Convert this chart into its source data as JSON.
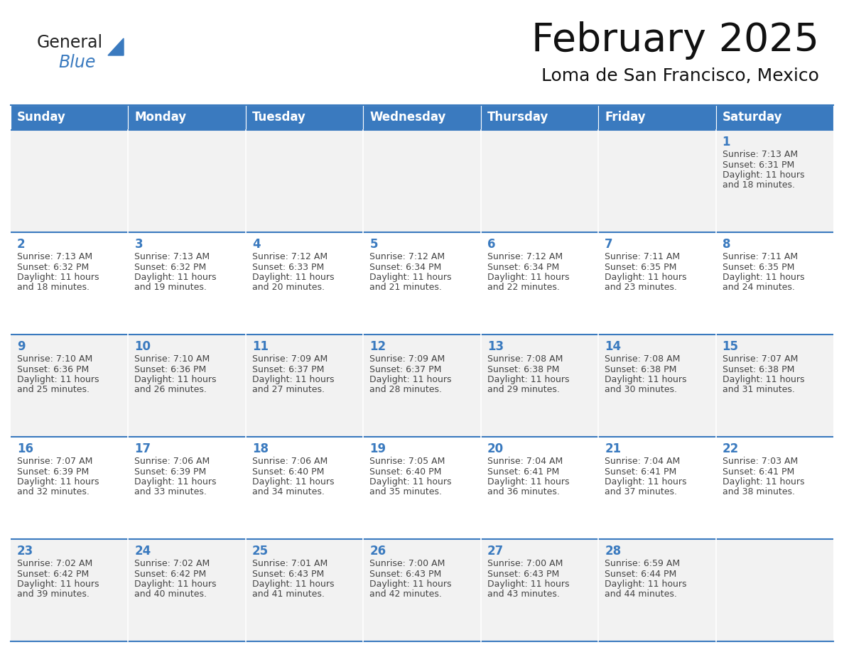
{
  "title": "February 2025",
  "subtitle": "Loma de San Francisco, Mexico",
  "header_color": "#3a7abf",
  "header_text_color": "#ffffff",
  "cell_bg_even": "#f2f2f2",
  "cell_bg_odd": "#ffffff",
  "text_color": "#444444",
  "day_number_color": "#3a7abf",
  "border_color": "#3a7abf",
  "days_of_week": [
    "Sunday",
    "Monday",
    "Tuesday",
    "Wednesday",
    "Thursday",
    "Friday",
    "Saturday"
  ],
  "calendar_data": [
    [
      null,
      null,
      null,
      null,
      null,
      null,
      {
        "day": "1",
        "sunrise": "7:13 AM",
        "sunset": "6:31 PM",
        "daylight": "11 hours and 18 minutes."
      }
    ],
    [
      {
        "day": "2",
        "sunrise": "7:13 AM",
        "sunset": "6:32 PM",
        "daylight": "11 hours and 18 minutes."
      },
      {
        "day": "3",
        "sunrise": "7:13 AM",
        "sunset": "6:32 PM",
        "daylight": "11 hours and 19 minutes."
      },
      {
        "day": "4",
        "sunrise": "7:12 AM",
        "sunset": "6:33 PM",
        "daylight": "11 hours and 20 minutes."
      },
      {
        "day": "5",
        "sunrise": "7:12 AM",
        "sunset": "6:34 PM",
        "daylight": "11 hours and 21 minutes."
      },
      {
        "day": "6",
        "sunrise": "7:12 AM",
        "sunset": "6:34 PM",
        "daylight": "11 hours and 22 minutes."
      },
      {
        "day": "7",
        "sunrise": "7:11 AM",
        "sunset": "6:35 PM",
        "daylight": "11 hours and 23 minutes."
      },
      {
        "day": "8",
        "sunrise": "7:11 AM",
        "sunset": "6:35 PM",
        "daylight": "11 hours and 24 minutes."
      }
    ],
    [
      {
        "day": "9",
        "sunrise": "7:10 AM",
        "sunset": "6:36 PM",
        "daylight": "11 hours and 25 minutes."
      },
      {
        "day": "10",
        "sunrise": "7:10 AM",
        "sunset": "6:36 PM",
        "daylight": "11 hours and 26 minutes."
      },
      {
        "day": "11",
        "sunrise": "7:09 AM",
        "sunset": "6:37 PM",
        "daylight": "11 hours and 27 minutes."
      },
      {
        "day": "12",
        "sunrise": "7:09 AM",
        "sunset": "6:37 PM",
        "daylight": "11 hours and 28 minutes."
      },
      {
        "day": "13",
        "sunrise": "7:08 AM",
        "sunset": "6:38 PM",
        "daylight": "11 hours and 29 minutes."
      },
      {
        "day": "14",
        "sunrise": "7:08 AM",
        "sunset": "6:38 PM",
        "daylight": "11 hours and 30 minutes."
      },
      {
        "day": "15",
        "sunrise": "7:07 AM",
        "sunset": "6:38 PM",
        "daylight": "11 hours and 31 minutes."
      }
    ],
    [
      {
        "day": "16",
        "sunrise": "7:07 AM",
        "sunset": "6:39 PM",
        "daylight": "11 hours and 32 minutes."
      },
      {
        "day": "17",
        "sunrise": "7:06 AM",
        "sunset": "6:39 PM",
        "daylight": "11 hours and 33 minutes."
      },
      {
        "day": "18",
        "sunrise": "7:06 AM",
        "sunset": "6:40 PM",
        "daylight": "11 hours and 34 minutes."
      },
      {
        "day": "19",
        "sunrise": "7:05 AM",
        "sunset": "6:40 PM",
        "daylight": "11 hours and 35 minutes."
      },
      {
        "day": "20",
        "sunrise": "7:04 AM",
        "sunset": "6:41 PM",
        "daylight": "11 hours and 36 minutes."
      },
      {
        "day": "21",
        "sunrise": "7:04 AM",
        "sunset": "6:41 PM",
        "daylight": "11 hours and 37 minutes."
      },
      {
        "day": "22",
        "sunrise": "7:03 AM",
        "sunset": "6:41 PM",
        "daylight": "11 hours and 38 minutes."
      }
    ],
    [
      {
        "day": "23",
        "sunrise": "7:02 AM",
        "sunset": "6:42 PM",
        "daylight": "11 hours and 39 minutes."
      },
      {
        "day": "24",
        "sunrise": "7:02 AM",
        "sunset": "6:42 PM",
        "daylight": "11 hours and 40 minutes."
      },
      {
        "day": "25",
        "sunrise": "7:01 AM",
        "sunset": "6:43 PM",
        "daylight": "11 hours and 41 minutes."
      },
      {
        "day": "26",
        "sunrise": "7:00 AM",
        "sunset": "6:43 PM",
        "daylight": "11 hours and 42 minutes."
      },
      {
        "day": "27",
        "sunrise": "7:00 AM",
        "sunset": "6:43 PM",
        "daylight": "11 hours and 43 minutes."
      },
      {
        "day": "28",
        "sunrise": "6:59 AM",
        "sunset": "6:44 PM",
        "daylight": "11 hours and 44 minutes."
      },
      null
    ]
  ],
  "figsize": [
    11.88,
    9.18
  ],
  "dpi": 100,
  "title_fontsize": 40,
  "subtitle_fontsize": 18,
  "dow_fontsize": 12,
  "day_num_fontsize": 12,
  "cell_fontsize": 9,
  "logo_general_fontsize": 17,
  "logo_blue_fontsize": 17
}
